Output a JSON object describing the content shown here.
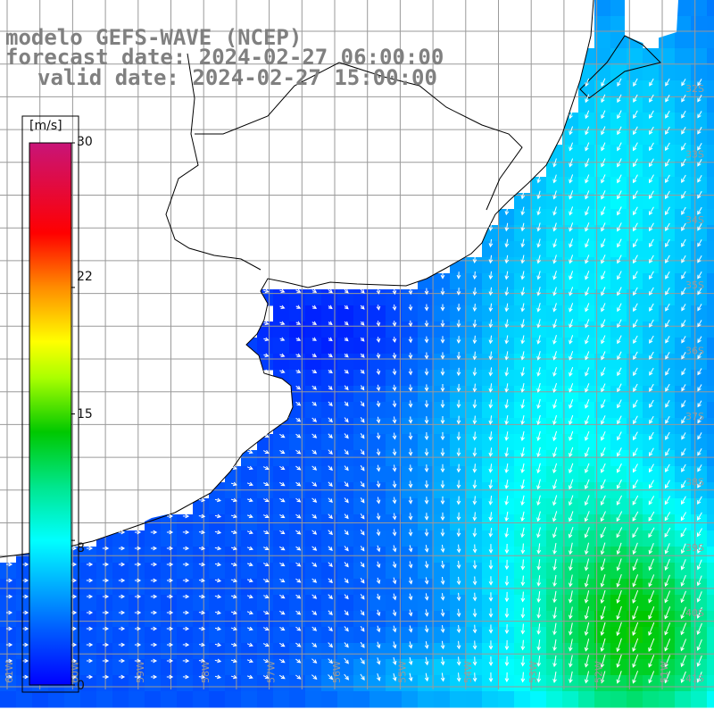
{
  "title": {
    "line1": "modelo GEFS-WAVE (NCEP)",
    "line2": "forecast date: 2024-02-27 06:00:00",
    "line3": "valid date: 2024-02-27 15:00:00"
  },
  "colorbar": {
    "unit": "[m/s]",
    "labels": [
      "30",
      "22",
      "15",
      "8",
      "0"
    ],
    "values": [
      30,
      22,
      15,
      8,
      0
    ],
    "min": 0,
    "max": 30,
    "colors": [
      "#0000ff",
      "#00a0ff",
      "#00ffff",
      "#00e060",
      "#00c000",
      "#b0ff00",
      "#ffff00",
      "#ff9000",
      "#ff0000",
      "#d00050",
      "#c8107a"
    ]
  },
  "map": {
    "latitude_labels": [
      "32S",
      "33S",
      "34S",
      "35S",
      "36S",
      "37S",
      "38S",
      "39S",
      "40S",
      "41S"
    ],
    "longitude_labels": [
      "61W",
      "60W",
      "59W",
      "58W",
      "57W",
      "56W",
      "55W",
      "54W",
      "53W",
      "52W",
      "51W"
    ],
    "land_color": "#ffffff",
    "grid_color": "#9a9a9a",
    "coastline_color": "#000000",
    "arrow_color": "#ffffff"
  }
}
